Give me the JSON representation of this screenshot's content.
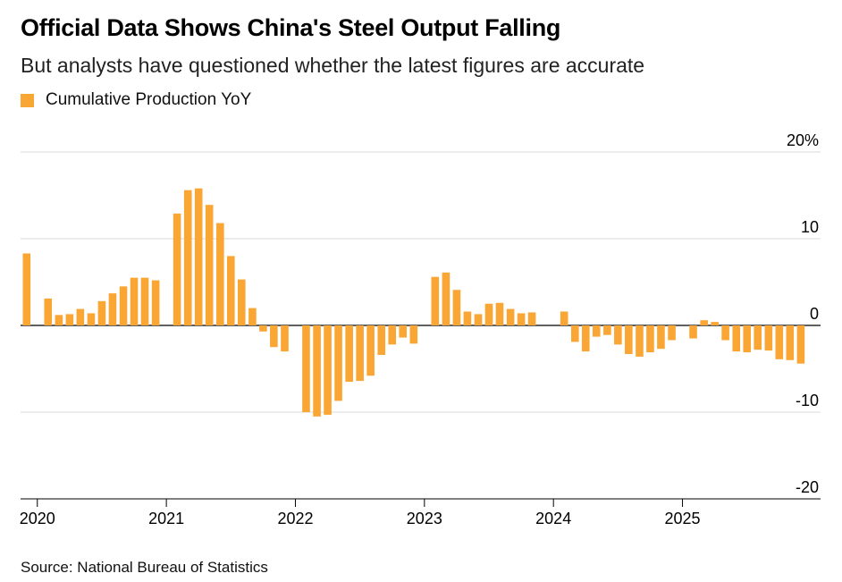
{
  "title": "Official Data Shows China's Steel Output Falling",
  "subtitle": "But analysts have questioned whether the latest figures are accurate",
  "source": "Source: National Bureau of Statistics",
  "colors": {
    "bar": "#f9a634",
    "grid": "#d9d9d9",
    "axis": "#000000",
    "text": "#000000"
  },
  "chart_data": {
    "type": "bar",
    "title": "Official Data Shows China's Steel Output Falling",
    "subtitle": "But analysts have questioned whether the latest figures are accurate",
    "xlabel": "",
    "ylabel": "",
    "legend": {
      "position": "top-left",
      "entries": [
        "Cumulative Production YoY"
      ]
    },
    "ylim": [
      -20,
      20
    ],
    "yticks": [
      {
        "value": 20,
        "label": "20%"
      },
      {
        "value": 10,
        "label": "10"
      },
      {
        "value": 0,
        "label": "0"
      },
      {
        "value": -10,
        "label": "-10"
      },
      {
        "value": -20,
        "label": "-20"
      }
    ],
    "xticks": [
      {
        "x": 2020,
        "label": "2020"
      },
      {
        "x": 2021,
        "label": "2021"
      },
      {
        "x": 2022,
        "label": "2022"
      },
      {
        "x": 2023,
        "label": "2023"
      },
      {
        "x": 2024,
        "label": "2024"
      },
      {
        "x": 2025,
        "label": "2025"
      }
    ],
    "grid": true,
    "series": [
      {
        "name": "Cumulative Production YoY",
        "points": [
          {
            "x": 2019.917,
            "y": 8.3
          },
          {
            "x": 2020.083,
            "y": 3.1
          },
          {
            "x": 2020.167,
            "y": 1.2
          },
          {
            "x": 2020.25,
            "y": 1.3
          },
          {
            "x": 2020.333,
            "y": 1.9
          },
          {
            "x": 2020.417,
            "y": 1.4
          },
          {
            "x": 2020.5,
            "y": 2.8
          },
          {
            "x": 2020.583,
            "y": 3.7
          },
          {
            "x": 2020.667,
            "y": 4.5
          },
          {
            "x": 2020.75,
            "y": 5.5
          },
          {
            "x": 2020.833,
            "y": 5.5
          },
          {
            "x": 2020.917,
            "y": 5.2
          },
          {
            "x": 2021.083,
            "y": 12.9
          },
          {
            "x": 2021.167,
            "y": 15.6
          },
          {
            "x": 2021.25,
            "y": 15.8
          },
          {
            "x": 2021.333,
            "y": 13.9
          },
          {
            "x": 2021.417,
            "y": 11.8
          },
          {
            "x": 2021.5,
            "y": 8.0
          },
          {
            "x": 2021.583,
            "y": 5.3
          },
          {
            "x": 2021.667,
            "y": 2.0
          },
          {
            "x": 2021.75,
            "y": -0.7
          },
          {
            "x": 2021.833,
            "y": -2.5
          },
          {
            "x": 2021.917,
            "y": -3.0
          },
          {
            "x": 2022.083,
            "y": -10.0
          },
          {
            "x": 2022.167,
            "y": -10.5
          },
          {
            "x": 2022.25,
            "y": -10.3
          },
          {
            "x": 2022.333,
            "y": -8.7
          },
          {
            "x": 2022.417,
            "y": -6.5
          },
          {
            "x": 2022.5,
            "y": -6.4
          },
          {
            "x": 2022.583,
            "y": -5.8
          },
          {
            "x": 2022.667,
            "y": -3.4
          },
          {
            "x": 2022.75,
            "y": -2.2
          },
          {
            "x": 2022.833,
            "y": -1.4
          },
          {
            "x": 2022.917,
            "y": -2.1
          },
          {
            "x": 2023.083,
            "y": 5.6
          },
          {
            "x": 2023.167,
            "y": 6.1
          },
          {
            "x": 2023.25,
            "y": 4.1
          },
          {
            "x": 2023.333,
            "y": 1.6
          },
          {
            "x": 2023.417,
            "y": 1.3
          },
          {
            "x": 2023.5,
            "y": 2.5
          },
          {
            "x": 2023.583,
            "y": 2.6
          },
          {
            "x": 2023.667,
            "y": 1.9
          },
          {
            "x": 2023.75,
            "y": 1.4
          },
          {
            "x": 2023.833,
            "y": 1.5
          },
          {
            "x": 2024.083,
            "y": 1.6
          },
          {
            "x": 2024.167,
            "y": -1.9
          },
          {
            "x": 2024.25,
            "y": -3.0
          },
          {
            "x": 2024.333,
            "y": -1.3
          },
          {
            "x": 2024.417,
            "y": -1.1
          },
          {
            "x": 2024.5,
            "y": -2.2
          },
          {
            "x": 2024.583,
            "y": -3.3
          },
          {
            "x": 2024.667,
            "y": -3.6
          },
          {
            "x": 2024.75,
            "y": -3.1
          },
          {
            "x": 2024.833,
            "y": -2.7
          },
          {
            "x": 2024.917,
            "y": -1.7
          },
          {
            "x": 2025.083,
            "y": -1.5
          },
          {
            "x": 2025.167,
            "y": 0.6
          },
          {
            "x": 2025.25,
            "y": 0.4
          },
          {
            "x": 2025.333,
            "y": -1.7
          },
          {
            "x": 2025.417,
            "y": -3.0
          },
          {
            "x": 2025.5,
            "y": -3.1
          },
          {
            "x": 2025.583,
            "y": -2.8
          },
          {
            "x": 2025.667,
            "y": -2.9
          },
          {
            "x": 2025.75,
            "y": -3.9
          },
          {
            "x": 2025.833,
            "y": -4.0
          },
          {
            "x": 2025.917,
            "y": -4.4
          }
        ]
      }
    ]
  }
}
